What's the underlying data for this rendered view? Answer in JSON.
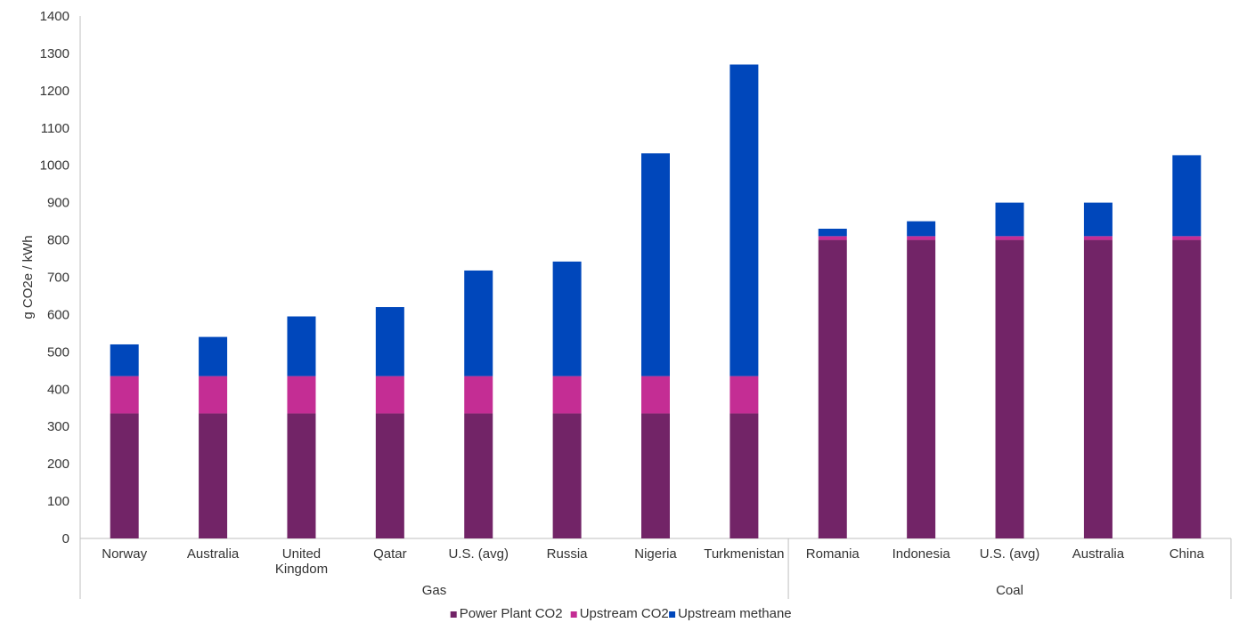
{
  "chart_data": {
    "type": "bar",
    "stacked": true,
    "ylabel": "g CO2e / kWh",
    "xlabel": "",
    "ylim": [
      0,
      1400
    ],
    "ytick_step": 100,
    "grid": false,
    "legend_position": "bottom",
    "groups": [
      {
        "name": "Gas",
        "categories": [
          "Norway",
          "Australia",
          "United Kingdom",
          "Qatar",
          "U.S. (avg)",
          "Russia",
          "Nigeria",
          "Turkmenistan"
        ]
      },
      {
        "name": "Coal",
        "categories": [
          "Romania",
          "Indonesia",
          "U.S. (avg)",
          "Australia",
          "China"
        ]
      }
    ],
    "categories": [
      "Norway",
      "Australia",
      "United Kingdom",
      "Qatar",
      "U.S. (avg)",
      "Russia",
      "Nigeria",
      "Turkmenistan",
      "Romania",
      "Indonesia",
      "U.S. (avg)",
      "Australia",
      "China"
    ],
    "series": [
      {
        "name": "Power Plant CO2",
        "color": "#722467",
        "values": [
          335,
          335,
          335,
          335,
          335,
          335,
          335,
          335,
          800,
          800,
          800,
          800,
          800
        ]
      },
      {
        "name": "Upstream CO2",
        "color": "#C42D94",
        "values": [
          100,
          100,
          100,
          100,
          100,
          100,
          100,
          100,
          10,
          10,
          10,
          10,
          10
        ]
      },
      {
        "name": "Upstream methane",
        "color": "#0047BB",
        "values": [
          85,
          105,
          160,
          185,
          283,
          307,
          597,
          835,
          20,
          40,
          90,
          90,
          217
        ]
      }
    ]
  }
}
